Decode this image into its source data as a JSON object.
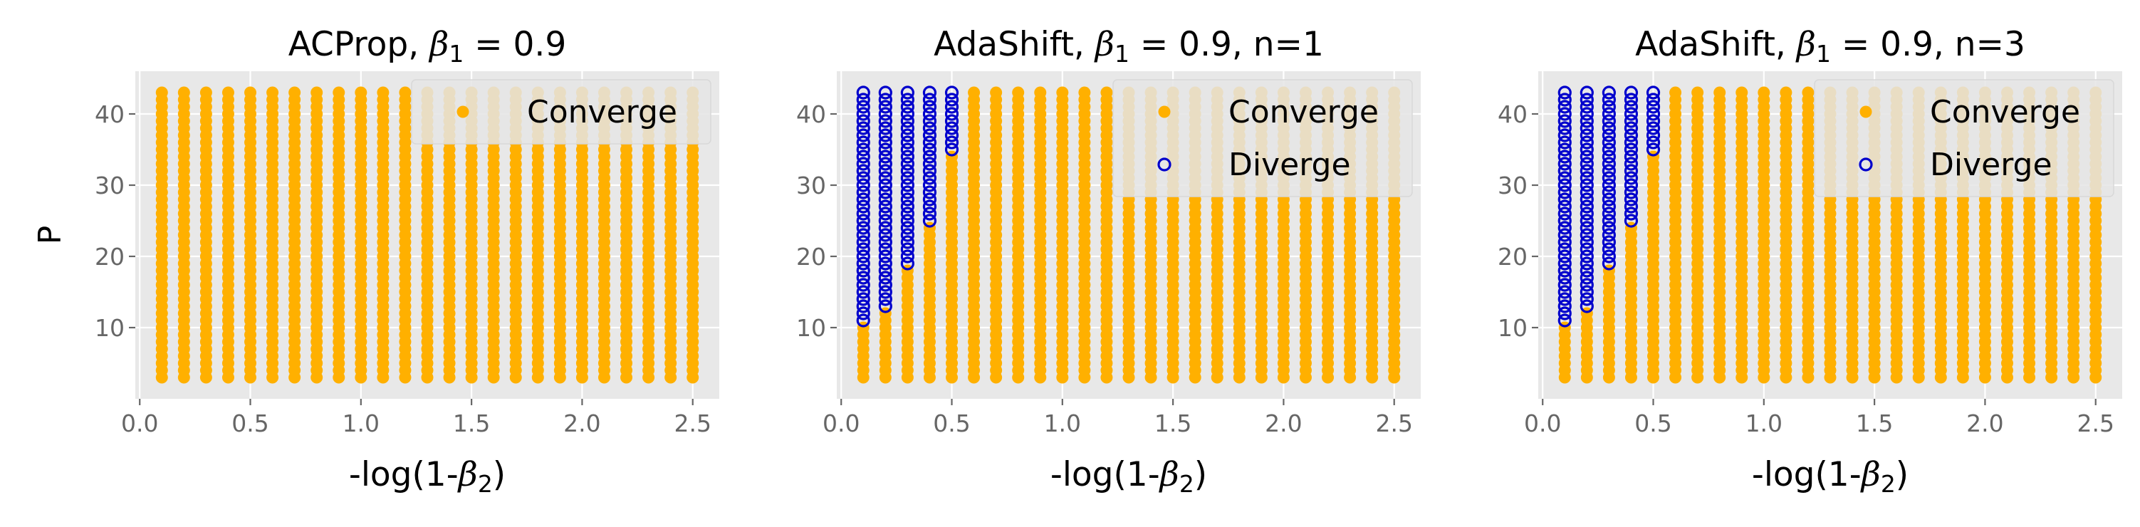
{
  "chart_data": [
    {
      "type": "scatter",
      "title": "ACProp, β₁ = 0.9",
      "xlabel": "-log(1-β₂)",
      "ylabel": "P",
      "xlim": [
        -0.02,
        2.62
      ],
      "ylim": [
        0,
        46
      ],
      "xticks": [
        "0.0",
        "0.5",
        "1.0",
        "1.5",
        "2.0",
        "2.5"
      ],
      "yticks": [
        "10",
        "20",
        "30",
        "40"
      ],
      "grid": true,
      "legend_position": "top-right",
      "x_grid": {
        "start": 0.1,
        "step": 0.1,
        "count": 25
      },
      "y_grid": {
        "start": 3,
        "step": 1,
        "count": 41
      },
      "series": [
        {
          "name": "Converge",
          "color": "#FFB000",
          "marker": "filled-circle",
          "rule": "all points not in Diverge"
        }
      ],
      "diverge_min_P_by_x": {}
    },
    {
      "type": "scatter",
      "title": "AdaShift, β₁ = 0.9, n=1",
      "xlabel": "-log(1-β₂)",
      "ylabel": "",
      "xlim": [
        -0.02,
        2.62
      ],
      "ylim": [
        0,
        46
      ],
      "xticks": [
        "0.0",
        "0.5",
        "1.0",
        "1.5",
        "2.0",
        "2.5"
      ],
      "yticks": [
        "10",
        "20",
        "30",
        "40"
      ],
      "grid": true,
      "legend_position": "top-right",
      "x_grid": {
        "start": 0.1,
        "step": 0.1,
        "count": 25
      },
      "y_grid": {
        "start": 3,
        "step": 1,
        "count": 41
      },
      "series": [
        {
          "name": "Converge",
          "color": "#FFB000",
          "marker": "filled-circle",
          "rule": "all points not in Diverge"
        },
        {
          "name": "Diverge",
          "color": "#0000CC",
          "marker": "open-circle",
          "rule": "P >= threshold for x"
        }
      ],
      "diverge_min_P_by_x": {
        "0.1": 11,
        "0.2": 13,
        "0.3": 19,
        "0.4": 25,
        "0.5": 35
      }
    },
    {
      "type": "scatter",
      "title": "AdaShift, β₁ = 0.9, n=3",
      "xlabel": "-log(1-β₂)",
      "ylabel": "",
      "xlim": [
        -0.02,
        2.62
      ],
      "ylim": [
        0,
        46
      ],
      "xticks": [
        "0.0",
        "0.5",
        "1.0",
        "1.5",
        "2.0",
        "2.5"
      ],
      "yticks": [
        "10",
        "20",
        "30",
        "40"
      ],
      "grid": true,
      "legend_position": "top-right",
      "x_grid": {
        "start": 0.1,
        "step": 0.1,
        "count": 25
      },
      "y_grid": {
        "start": 3,
        "step": 1,
        "count": 41
      },
      "series": [
        {
          "name": "Converge",
          "color": "#FFB000",
          "marker": "filled-circle",
          "rule": "all points not in Diverge"
        },
        {
          "name": "Diverge",
          "color": "#0000CC",
          "marker": "open-circle",
          "rule": "P >= threshold for x"
        }
      ],
      "diverge_min_P_by_x": {
        "0.1": 11,
        "0.2": 13,
        "0.3": 19,
        "0.4": 25,
        "0.5": 35
      }
    }
  ],
  "colors": {
    "plot_background": "#E8E8E8",
    "grid": "#FFFFFF"
  }
}
